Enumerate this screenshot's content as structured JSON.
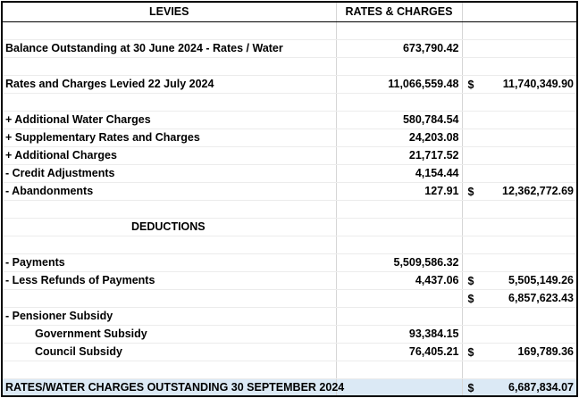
{
  "header": {
    "levies": "LEVIES",
    "rates": "RATES & CHARGES"
  },
  "rows": [
    {
      "label": "Balance Outstanding at 30 June 2024 - Rates / Water",
      "amount": "673,790.42"
    },
    {
      "label": "Rates and Charges Levied 22 July 2024",
      "amount": "11,066,559.48",
      "currency": "$",
      "total": "11,740,349.90"
    },
    {
      "label": "+ Additional Water Charges",
      "amount": "580,784.54"
    },
    {
      "label": "+ Supplementary Rates and Charges",
      "amount": "24,203.08"
    },
    {
      "label": "+ Additional Charges",
      "amount": "21,717.52"
    },
    {
      "label": "- Credit Adjustments",
      "amount": "4,154.44"
    },
    {
      "label": "- Abandonments",
      "amount": "127.91",
      "currency": "$",
      "total": "12,362,772.69"
    },
    {
      "label": "- Payments",
      "amount": "5,509,586.32"
    },
    {
      "label": "- Less Refunds of Payments",
      "amount": "4,437.06",
      "currency": "$",
      "total": "5,505,149.26"
    },
    {
      "currency": "$",
      "total": "6,857,623.43"
    },
    {
      "label": "- Pensioner Subsidy"
    },
    {
      "label": "Government Subsidy",
      "amount": "93,384.15"
    },
    {
      "label": "Council Subsidy",
      "amount": "76,405.21",
      "currency": "$",
      "total": "169,789.36"
    }
  ],
  "deductions": "DEDUCTIONS",
  "total_row": {
    "label": "RATES/WATER CHARGES OUTSTANDING 30 SEPTEMBER 2024",
    "currency": "$",
    "total": "6,687,834.07"
  }
}
